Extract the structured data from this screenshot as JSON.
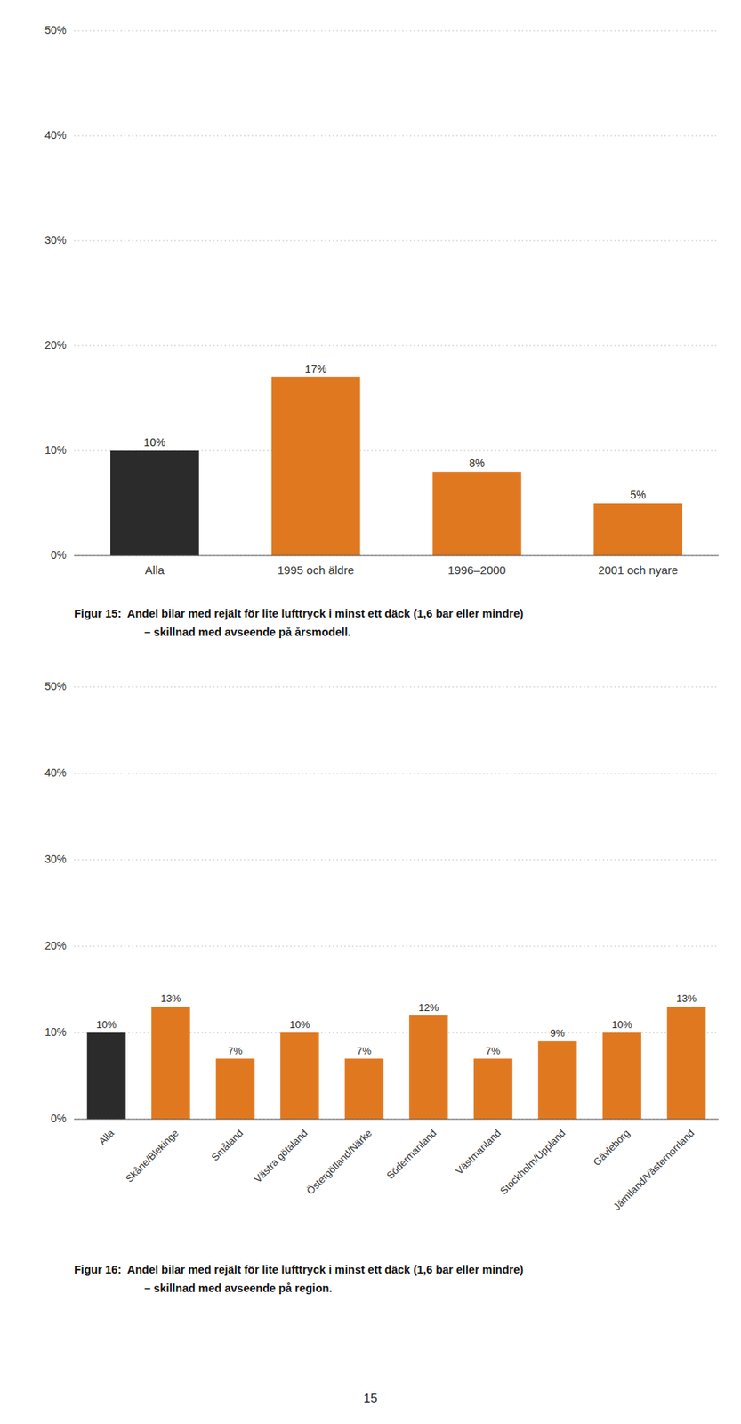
{
  "chart_data": [
    {
      "type": "bar",
      "title": "Figur 15:  Andel bilar med rejält för lite lufttryck i minst ett däck (1,6 bar eller mindre)",
      "subtitle": "– skillnad med avseende på årsmodell.",
      "categories": [
        "Alla",
        "1995 och äldre",
        "1996–2000",
        "2001 och nyare"
      ],
      "values": [
        0.1,
        0.17,
        0.08,
        0.05
      ],
      "value_labels": [
        "10%",
        "17%",
        "8%",
        "5%"
      ],
      "colors": [
        "#2b2b2b",
        "#e07820",
        "#e07820",
        "#e07820"
      ],
      "ylim": [
        0,
        0.5
      ],
      "yticks": [
        {
          "value": 0.0,
          "label": "0%"
        },
        {
          "value": 0.1,
          "label": "10%"
        },
        {
          "value": 0.2,
          "label": "20%"
        },
        {
          "value": 0.3,
          "label": "30%"
        },
        {
          "value": 0.4,
          "label": "40%"
        },
        {
          "value": 0.5,
          "label": "50%"
        }
      ],
      "grid": true,
      "data_labels": true
    },
    {
      "type": "bar",
      "title": "Figur 16:  Andel bilar med rejält för lite lufttryck i minst ett däck (1,6 bar eller mindre)",
      "subtitle": "– skillnad med avseende på region.",
      "categories": [
        "Alla",
        "Skåne/Blekinge",
        "Småland",
        "Västra götaland",
        "Östergötland/Närke",
        "Södermanland",
        "Västmanland",
        "Stockholm/Uppland",
        "Gävleborg",
        "Jämtland/Västernorrland"
      ],
      "values": [
        0.1,
        0.13,
        0.07,
        0.1,
        0.07,
        0.12,
        0.07,
        0.09,
        0.1,
        0.13
      ],
      "value_labels": [
        "10%",
        "13%",
        "7%",
        "10%",
        "7%",
        "12%",
        "7%",
        "9%",
        "10%",
        "13%"
      ],
      "colors": [
        "#2b2b2b",
        "#e07820",
        "#e07820",
        "#e07820",
        "#e07820",
        "#e07820",
        "#e07820",
        "#e07820",
        "#e07820",
        "#e07820"
      ],
      "ylim": [
        0,
        0.5
      ],
      "yticks": [
        {
          "value": 0.0,
          "label": "0%"
        },
        {
          "value": 0.1,
          "label": "10%"
        },
        {
          "value": 0.2,
          "label": "20%"
        },
        {
          "value": 0.3,
          "label": "30%"
        },
        {
          "value": 0.4,
          "label": "40%"
        },
        {
          "value": 0.5,
          "label": "50%"
        }
      ],
      "grid": true,
      "data_labels": true
    }
  ],
  "page_number": "15"
}
